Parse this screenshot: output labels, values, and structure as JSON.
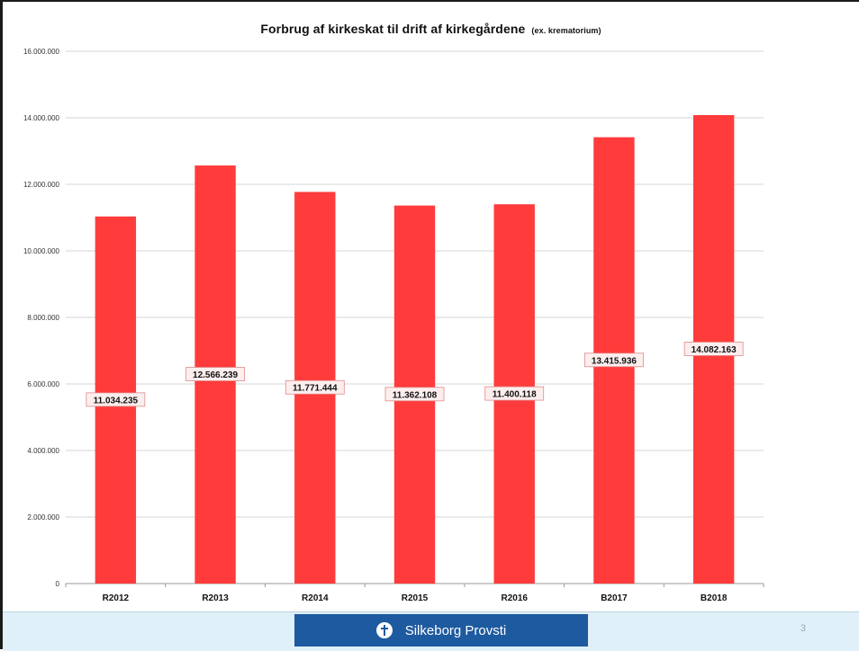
{
  "slide": {
    "footer": {
      "brand_name": "Silkeborg Provsti",
      "brand_icon": "church-cross-icon",
      "brand_color": "#1e5aa0",
      "background_color": "#dff0f8",
      "page_number": "3"
    }
  },
  "chart_data": {
    "type": "bar",
    "title": "Forbrug af kirkeskat til drift af kirkegårdene",
    "subtitle": "(ex. krematorium)",
    "xlabel": "",
    "ylabel": "",
    "categories": [
      "R2012",
      "R2013",
      "R2014",
      "R2015",
      "R2016",
      "B2017",
      "B2018"
    ],
    "values": [
      11034235,
      12566239,
      11771444,
      11362108,
      11400118,
      13415936,
      14082163
    ],
    "data_labels": [
      "11.034.235",
      "12.566.239",
      "11.771.444",
      "11.362.108",
      "11.400.118",
      "13.415.936",
      "14.082.163"
    ],
    "y_ticks": [
      0,
      2000000,
      4000000,
      6000000,
      8000000,
      10000000,
      12000000,
      14000000,
      16000000
    ],
    "y_tick_labels": [
      "0",
      "2.000.000",
      "4.000.000",
      "6.000.000",
      "8.000.000",
      "10.000.000",
      "12.000.000",
      "14.000.000",
      "16.000.000"
    ],
    "ylim": [
      0,
      16000000
    ],
    "grid": true,
    "legend": "none",
    "bar_color": "#ff3b3b"
  }
}
